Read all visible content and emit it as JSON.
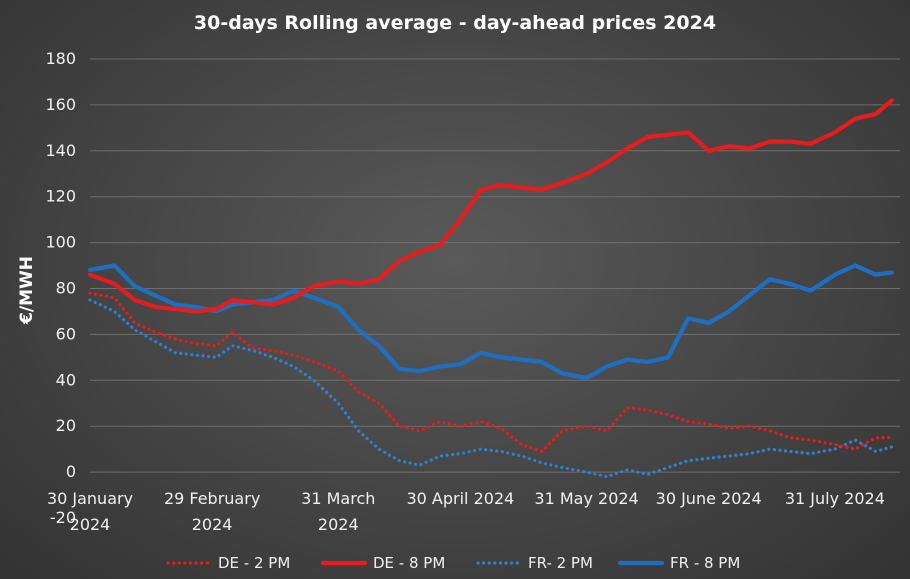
{
  "chart_data": {
    "type": "line",
    "title": "30-days Rolling average - day-ahead prices 2024",
    "ylabel": "€/MWH",
    "xlabel": "",
    "ylim": [
      -20,
      180
    ],
    "y_ticks": [
      "180",
      "160",
      "140",
      "120",
      "100",
      "80",
      "60",
      "40",
      "20",
      "0",
      "-20"
    ],
    "x_ticks": [
      "30 January 2024",
      "29 February 2024",
      "31 March 2024",
      "30 April 2024",
      "31 May 2024",
      "30 June 2024",
      "31 July 2024"
    ],
    "x_tick_lines": [
      [
        "30 January",
        "2024"
      ],
      [
        "29 February",
        "2024"
      ],
      [
        "31 March",
        "2024"
      ],
      [
        "30 April 2024"
      ],
      [
        "31 May 2024"
      ],
      [
        "30 June 2024"
      ],
      [
        "31 July 2024"
      ]
    ],
    "x": [
      "2024-01-30",
      "2024-02-05",
      "2024-02-10",
      "2024-02-15",
      "2024-02-20",
      "2024-02-25",
      "2024-03-01",
      "2024-03-05",
      "2024-03-10",
      "2024-03-15",
      "2024-03-20",
      "2024-03-25",
      "2024-03-31",
      "2024-04-05",
      "2024-04-10",
      "2024-04-15",
      "2024-04-20",
      "2024-04-25",
      "2024-04-30",
      "2024-05-05",
      "2024-05-10",
      "2024-05-15",
      "2024-05-20",
      "2024-05-25",
      "2024-05-31",
      "2024-06-05",
      "2024-06-10",
      "2024-06-15",
      "2024-06-20",
      "2024-06-25",
      "2024-06-30",
      "2024-07-05",
      "2024-07-10",
      "2024-07-15",
      "2024-07-20",
      "2024-07-25",
      "2024-07-31",
      "2024-08-05",
      "2024-08-10",
      "2024-08-14"
    ],
    "grid": true,
    "legend_position": "bottom",
    "series": [
      {
        "name": "DE - 2 PM",
        "color": "#e81c1c",
        "style": "dotted",
        "values": [
          78,
          76,
          65,
          61,
          58,
          56,
          55,
          61,
          54,
          53,
          51,
          48,
          44,
          35,
          30,
          20,
          18,
          22,
          20,
          22,
          19,
          12,
          9,
          18,
          20,
          18,
          28,
          27,
          25,
          22,
          21,
          19,
          20,
          18,
          15,
          14,
          12,
          10,
          15,
          15
        ]
      },
      {
        "name": "DE - 8 PM",
        "color": "#e81c1c",
        "style": "solid",
        "values": [
          86,
          82,
          75,
          72,
          71,
          70,
          71,
          75,
          74,
          73,
          76,
          81,
          83,
          82,
          84,
          92,
          96,
          99,
          110,
          123,
          125,
          124,
          123,
          126,
          130,
          135,
          141,
          146,
          147,
          148,
          140,
          142,
          141,
          144,
          144,
          143,
          148,
          154,
          156,
          162
        ]
      },
      {
        "name": "FR- 2 PM",
        "color": "#2f7fd3",
        "style": "dotted",
        "values": [
          75,
          70,
          62,
          57,
          52,
          51,
          50,
          55,
          53,
          50,
          46,
          40,
          30,
          18,
          10,
          5,
          3,
          7,
          8,
          10,
          9,
          7,
          4,
          2,
          0,
          -2,
          1,
          -1,
          2,
          5,
          6,
          7,
          8,
          10,
          9,
          8,
          10,
          14,
          9,
          11
        ]
      },
      {
        "name": "FR - 8 PM",
        "color": "#1e6fc4",
        "style": "solid",
        "values": [
          88,
          90,
          81,
          77,
          73,
          72,
          70,
          73,
          74,
          75,
          79,
          76,
          72,
          62,
          55,
          45,
          44,
          46,
          47,
          52,
          50,
          49,
          48,
          43,
          41,
          46,
          49,
          48,
          50,
          67,
          65,
          70,
          77,
          84,
          82,
          79,
          86,
          90,
          86,
          87
        ]
      }
    ]
  }
}
